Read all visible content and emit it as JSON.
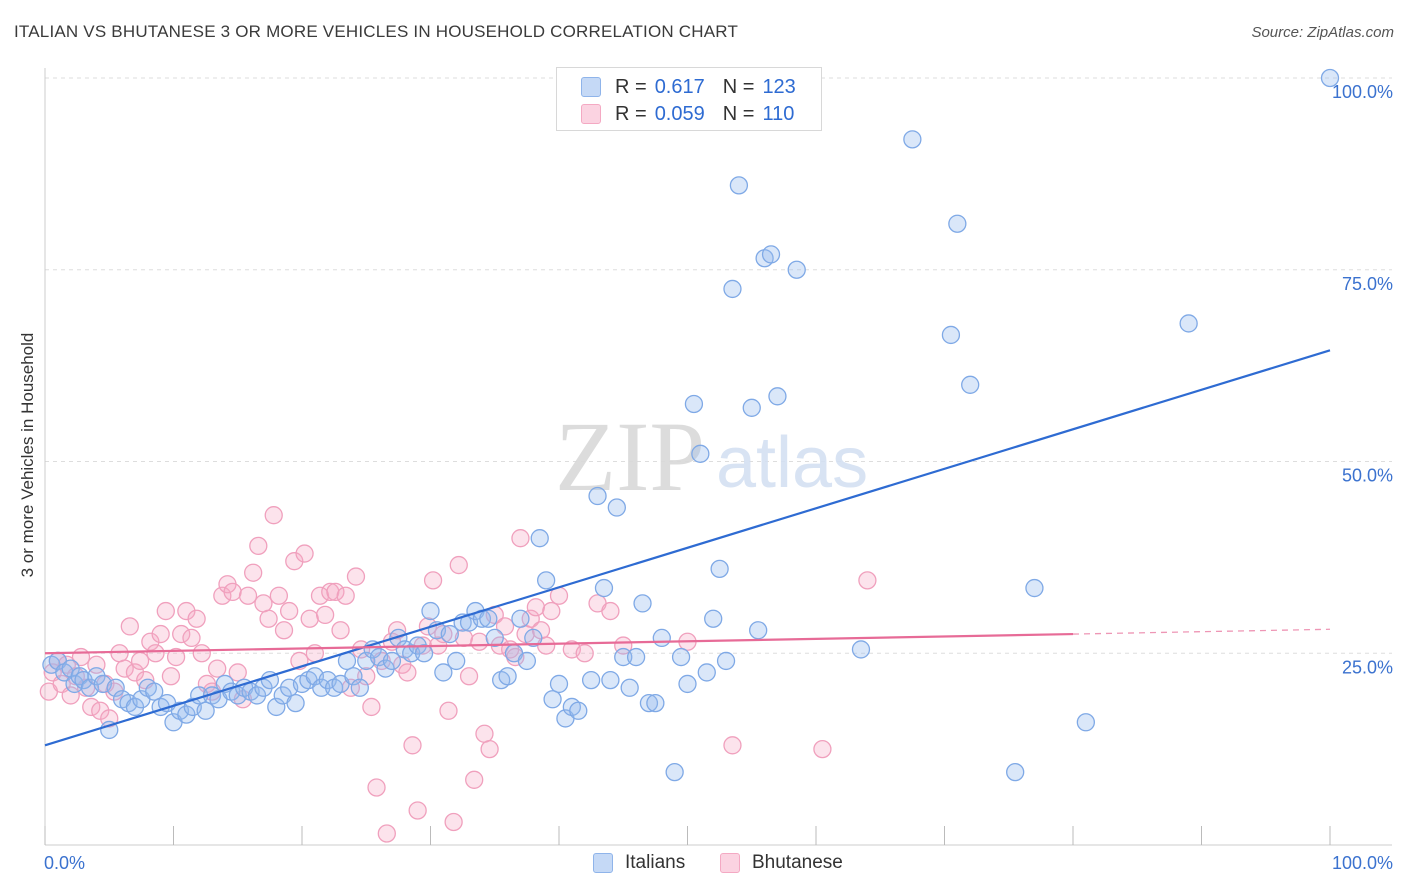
{
  "header": {
    "title": "ITALIAN VS BHUTANESE 3 OR MORE VEHICLES IN HOUSEHOLD CORRELATION CHART",
    "source": "Source: ZipAtlas.com"
  },
  "watermark": {
    "zip": "ZIP",
    "atlas": "atlas"
  },
  "legend": {
    "italians": {
      "r_label": "R =",
      "r_value": "0.617",
      "n_label": "N =",
      "n_value": "123",
      "color": "#8fb4ea"
    },
    "bhutanese": {
      "r_label": "R =",
      "r_value": "0.059",
      "n_label": "N =",
      "n_value": "110",
      "color": "#f4a9c3"
    }
  },
  "bottom_legend": {
    "italians": "Italians",
    "bhutanese": "Bhutanese"
  },
  "chart_data": {
    "type": "scatter",
    "title": "ITALIAN VS BHUTANESE 3 OR MORE VEHICLES IN HOUSEHOLD CORRELATION CHART",
    "xlabel": "",
    "ylabel": "3 or more Vehicles in Household",
    "xlim": [
      0,
      100
    ],
    "ylim": [
      0,
      100
    ],
    "x_tick_labels": [
      "0.0%",
      "100.0%"
    ],
    "y_ticks": [
      25,
      50,
      75,
      100
    ],
    "y_tick_labels": [
      "25.0%",
      "50.0%",
      "75.0%",
      "100.0%"
    ],
    "grid": "horizontal dashed",
    "legend_position": "top-center",
    "series": [
      {
        "name": "Italians",
        "color": "#8fb4ea",
        "trend_color": "#2e6bd2",
        "trend": {
          "x": [
            0,
            100
          ],
          "y": [
            13.0,
            64.5
          ]
        },
        "points": [
          [
            0.5,
            23.5
          ],
          [
            1.0,
            24.0
          ],
          [
            1.5,
            22.5
          ],
          [
            2.0,
            23.0
          ],
          [
            2.3,
            21.0
          ],
          [
            2.7,
            22.0
          ],
          [
            3.0,
            21.5
          ],
          [
            3.5,
            20.5
          ],
          [
            4.0,
            22.0
          ],
          [
            4.5,
            21.0
          ],
          [
            5.0,
            15.0
          ],
          [
            5.5,
            20.5
          ],
          [
            6.0,
            19.0
          ],
          [
            6.5,
            18.5
          ],
          [
            7.0,
            18.0
          ],
          [
            7.5,
            19.0
          ],
          [
            8.0,
            20.5
          ],
          [
            8.5,
            20.0
          ],
          [
            9.0,
            18.0
          ],
          [
            9.5,
            18.5
          ],
          [
            10.0,
            16.0
          ],
          [
            10.5,
            17.5
          ],
          [
            11.0,
            17.0
          ],
          [
            11.5,
            18.0
          ],
          [
            12.0,
            19.5
          ],
          [
            12.5,
            17.5
          ],
          [
            13.0,
            19.5
          ],
          [
            13.5,
            19.0
          ],
          [
            14.0,
            21.0
          ],
          [
            14.5,
            20.0
          ],
          [
            15.0,
            19.5
          ],
          [
            15.5,
            20.5
          ],
          [
            16.0,
            20.0
          ],
          [
            16.5,
            19.5
          ],
          [
            17.0,
            20.5
          ],
          [
            17.5,
            21.5
          ],
          [
            18.0,
            18.0
          ],
          [
            18.5,
            19.5
          ],
          [
            19.0,
            20.5
          ],
          [
            19.5,
            18.5
          ],
          [
            20.0,
            21.0
          ],
          [
            20.5,
            21.5
          ],
          [
            21.0,
            22.0
          ],
          [
            21.5,
            20.5
          ],
          [
            22.0,
            21.5
          ],
          [
            22.5,
            20.5
          ],
          [
            23.0,
            21.0
          ],
          [
            23.5,
            24.0
          ],
          [
            24.0,
            22.0
          ],
          [
            24.5,
            20.5
          ],
          [
            25.0,
            24.0
          ],
          [
            25.5,
            25.5
          ],
          [
            26.0,
            24.5
          ],
          [
            26.5,
            23.0
          ],
          [
            27.0,
            24.0
          ],
          [
            27.5,
            27.0
          ],
          [
            28.0,
            25.5
          ],
          [
            28.5,
            25.0
          ],
          [
            29.0,
            26.0
          ],
          [
            29.5,
            25.0
          ],
          [
            30.0,
            30.5
          ],
          [
            30.5,
            28.0
          ],
          [
            31.0,
            22.5
          ],
          [
            31.5,
            27.5
          ],
          [
            32.0,
            24.0
          ],
          [
            32.5,
            29.0
          ],
          [
            33.0,
            29.0
          ],
          [
            33.5,
            30.5
          ],
          [
            34.0,
            29.5
          ],
          [
            34.5,
            29.5
          ],
          [
            35.0,
            27.0
          ],
          [
            35.5,
            21.5
          ],
          [
            36.0,
            22.0
          ],
          [
            36.5,
            25.0
          ],
          [
            37.0,
            29.5
          ],
          [
            37.5,
            24.0
          ],
          [
            38.0,
            27.0
          ],
          [
            38.5,
            40.0
          ],
          [
            39.0,
            34.5
          ],
          [
            39.5,
            19.0
          ],
          [
            40.0,
            21.0
          ],
          [
            40.5,
            16.5
          ],
          [
            41.0,
            18.0
          ],
          [
            41.5,
            17.5
          ],
          [
            42.5,
            21.5
          ],
          [
            43.0,
            45.5
          ],
          [
            43.5,
            33.5
          ],
          [
            44.0,
            21.5
          ],
          [
            44.5,
            44.0
          ],
          [
            45.0,
            24.5
          ],
          [
            45.5,
            20.5
          ],
          [
            46.0,
            24.5
          ],
          [
            46.5,
            31.5
          ],
          [
            47.0,
            18.5
          ],
          [
            47.5,
            18.5
          ],
          [
            48.0,
            27.0
          ],
          [
            49.0,
            9.5
          ],
          [
            49.5,
            24.5
          ],
          [
            50.0,
            21.0
          ],
          [
            50.5,
            57.5
          ],
          [
            51.0,
            51.0
          ],
          [
            51.5,
            22.5
          ],
          [
            52.0,
            29.5
          ],
          [
            53.0,
            24.0
          ],
          [
            53.5,
            72.5
          ],
          [
            54.0,
            86.0
          ],
          [
            55.0,
            57.0
          ],
          [
            55.5,
            28.0
          ],
          [
            56.0,
            76.5
          ],
          [
            56.5,
            77.0
          ],
          [
            57.0,
            58.5
          ],
          [
            58.5,
            75.0
          ],
          [
            63.5,
            25.5
          ],
          [
            67.5,
            92.0
          ],
          [
            70.5,
            66.5
          ],
          [
            71.0,
            81.0
          ],
          [
            72.0,
            60.0
          ],
          [
            75.5,
            9.5
          ],
          [
            77.0,
            33.5
          ],
          [
            81.0,
            16.0
          ],
          [
            89.0,
            68.0
          ],
          [
            100.0,
            100.0
          ],
          [
            52.5,
            36.0
          ]
        ]
      },
      {
        "name": "Bhutanese",
        "color": "#f4a9c3",
        "trend_color": "#e76b97",
        "trend": {
          "x": [
            0,
            80
          ],
          "y": [
            25.0,
            27.5
          ]
        },
        "points": [
          [
            0.3,
            20.0
          ],
          [
            0.6,
            22.5
          ],
          [
            1.0,
            24.0
          ],
          [
            1.3,
            21.0
          ],
          [
            1.7,
            23.5
          ],
          [
            2.0,
            19.5
          ],
          [
            2.4,
            22.0
          ],
          [
            2.8,
            24.5
          ],
          [
            3.2,
            20.5
          ],
          [
            3.6,
            18.0
          ],
          [
            4.0,
            23.5
          ],
          [
            4.3,
            17.5
          ],
          [
            4.7,
            21.0
          ],
          [
            5.0,
            16.5
          ],
          [
            5.4,
            20.0
          ],
          [
            5.8,
            25.0
          ],
          [
            6.2,
            23.0
          ],
          [
            6.6,
            28.5
          ],
          [
            7.0,
            22.5
          ],
          [
            7.4,
            24.0
          ],
          [
            7.8,
            21.5
          ],
          [
            8.2,
            26.5
          ],
          [
            8.6,
            25.0
          ],
          [
            9.0,
            27.5
          ],
          [
            9.4,
            30.5
          ],
          [
            9.8,
            22.0
          ],
          [
            10.2,
            24.5
          ],
          [
            10.6,
            27.5
          ],
          [
            11.0,
            30.5
          ],
          [
            11.4,
            27.0
          ],
          [
            11.8,
            29.5
          ],
          [
            12.2,
            25.0
          ],
          [
            12.6,
            21.0
          ],
          [
            13.0,
            20.0
          ],
          [
            13.4,
            23.0
          ],
          [
            13.8,
            32.5
          ],
          [
            14.2,
            34.0
          ],
          [
            14.6,
            33.0
          ],
          [
            15.0,
            22.5
          ],
          [
            15.4,
            19.0
          ],
          [
            15.8,
            32.5
          ],
          [
            16.2,
            35.5
          ],
          [
            16.6,
            39.0
          ],
          [
            17.0,
            31.5
          ],
          [
            17.4,
            29.5
          ],
          [
            17.8,
            43.0
          ],
          [
            18.2,
            32.5
          ],
          [
            18.6,
            28.0
          ],
          [
            19.0,
            30.5
          ],
          [
            19.4,
            37.0
          ],
          [
            19.8,
            24.0
          ],
          [
            20.2,
            38.0
          ],
          [
            20.6,
            29.5
          ],
          [
            21.0,
            25.0
          ],
          [
            21.4,
            32.5
          ],
          [
            21.8,
            30.0
          ],
          [
            22.2,
            33.0
          ],
          [
            22.6,
            33.0
          ],
          [
            23.0,
            28.0
          ],
          [
            23.4,
            32.5
          ],
          [
            23.8,
            20.5
          ],
          [
            24.2,
            35.0
          ],
          [
            24.6,
            25.5
          ],
          [
            25.0,
            22.0
          ],
          [
            25.4,
            18.0
          ],
          [
            25.8,
            7.5
          ],
          [
            26.2,
            24.0
          ],
          [
            26.6,
            1.5
          ],
          [
            27.0,
            26.5
          ],
          [
            27.4,
            28.0
          ],
          [
            27.8,
            23.5
          ],
          [
            28.2,
            22.5
          ],
          [
            28.6,
            13.0
          ],
          [
            29.0,
            4.5
          ],
          [
            29.4,
            26.0
          ],
          [
            29.8,
            28.5
          ],
          [
            30.2,
            34.5
          ],
          [
            30.6,
            26.0
          ],
          [
            31.0,
            27.5
          ],
          [
            31.4,
            17.5
          ],
          [
            31.8,
            3.0
          ],
          [
            32.2,
            36.5
          ],
          [
            32.6,
            27.0
          ],
          [
            33.0,
            22.0
          ],
          [
            33.4,
            8.5
          ],
          [
            33.8,
            26.5
          ],
          [
            34.2,
            14.5
          ],
          [
            34.6,
            12.5
          ],
          [
            35.0,
            30.0
          ],
          [
            35.4,
            26.0
          ],
          [
            35.8,
            28.5
          ],
          [
            36.2,
            25.5
          ],
          [
            36.6,
            24.5
          ],
          [
            37.0,
            40.0
          ],
          [
            37.4,
            27.5
          ],
          [
            37.8,
            29.5
          ],
          [
            38.2,
            31.0
          ],
          [
            38.6,
            28.0
          ],
          [
            39.0,
            26.0
          ],
          [
            39.4,
            30.5
          ],
          [
            40.0,
            32.5
          ],
          [
            41.0,
            25.5
          ],
          [
            42.0,
            25.0
          ],
          [
            43.0,
            31.5
          ],
          [
            44.0,
            30.5
          ],
          [
            45.0,
            26.0
          ],
          [
            50.0,
            26.5
          ],
          [
            53.5,
            13.0
          ],
          [
            60.5,
            12.5
          ],
          [
            64.0,
            34.5
          ]
        ]
      }
    ]
  }
}
